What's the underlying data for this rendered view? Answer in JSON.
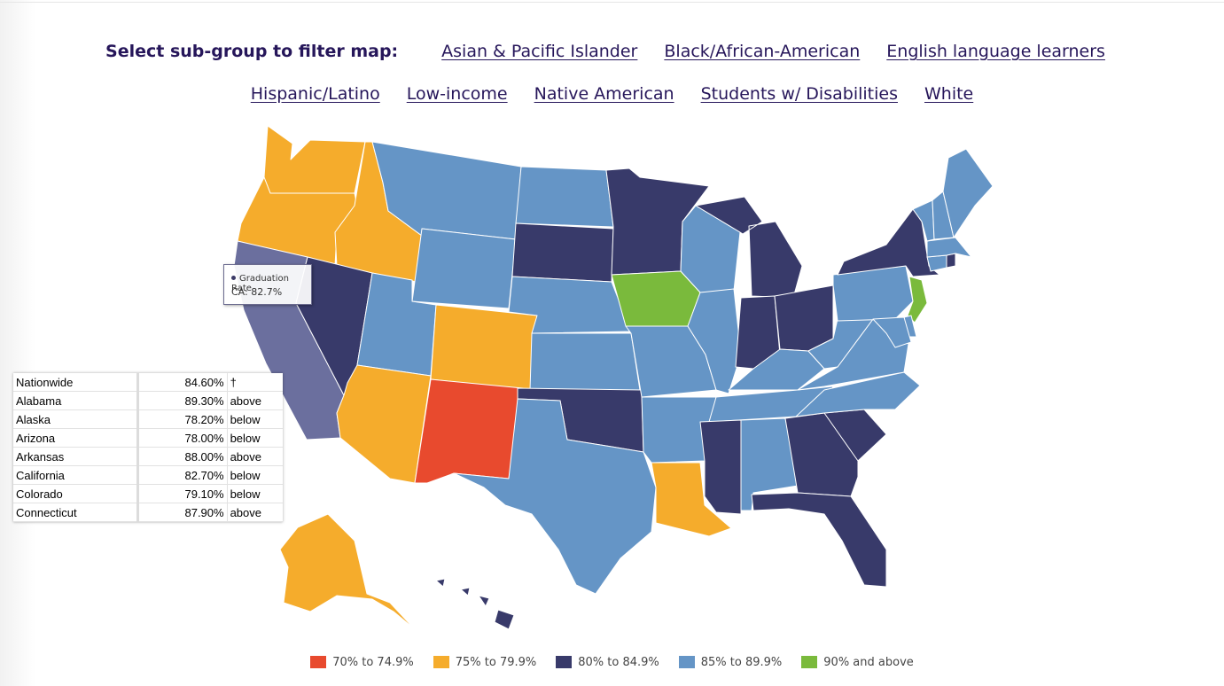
{
  "filter": {
    "label": "Select sub-group to filter map:",
    "links": [
      "Asian & Pacific Islander",
      "Black/African-American",
      "English language learners",
      "Hispanic/Latino",
      "Low-income",
      "Native American",
      "Students w/ Disabilities",
      "White"
    ]
  },
  "tooltip": {
    "series": "Graduation Rate",
    "value": "CA: 82.7%"
  },
  "table": [
    {
      "name": "Nationwide",
      "value": "84.60%",
      "compare": "†"
    },
    {
      "name": "Alabama",
      "value": "89.30%",
      "compare": "above"
    },
    {
      "name": "Alaska",
      "value": "78.20%",
      "compare": "below"
    },
    {
      "name": "Arizona",
      "value": "78.00%",
      "compare": "below"
    },
    {
      "name": "Arkansas",
      "value": "88.00%",
      "compare": "above"
    },
    {
      "name": "California",
      "value": "82.70%",
      "compare": "below"
    },
    {
      "name": "Colorado",
      "value": "79.10%",
      "compare": "below"
    },
    {
      "name": "Connecticut",
      "value": "87.90%",
      "compare": "above"
    }
  ],
  "legend": [
    {
      "label": "70% to 74.9%",
      "color": "#e84a2e"
    },
    {
      "label": "75% to 79.9%",
      "color": "#f5ac2c"
    },
    {
      "label": "80% to 84.9%",
      "color": "#383a6a"
    },
    {
      "label": "85% to 89.9%",
      "color": "#6595c6"
    },
    {
      "label": "90% and above",
      "color": "#7aba3c"
    }
  ],
  "highlight_color": "#6b6f9e",
  "state_colors": {
    "WA": "#f5ac2c",
    "OR": "#f5ac2c",
    "ID": "#f5ac2c",
    "CA": "#6b6f9e",
    "NV": "#383a6a",
    "AZ": "#f5ac2c",
    "UT": "#6595c6",
    "MT": "#6595c6",
    "WY": "#6595c6",
    "CO": "#f5ac2c",
    "NM": "#e84a2e",
    "ND": "#6595c6",
    "SD": "#383a6a",
    "NE": "#6595c6",
    "KS": "#6595c6",
    "OK": "#383a6a",
    "TX": "#6595c6",
    "MN": "#383a6a",
    "IA": "#7aba3c",
    "MO": "#6595c6",
    "AR": "#6595c6",
    "LA": "#f5ac2c",
    "WI": "#6595c6",
    "IL": "#6595c6",
    "MI": "#383a6a",
    "IN": "#383a6a",
    "OH": "#383a6a",
    "KY": "#6595c6",
    "TN": "#6595c6",
    "MS": "#383a6a",
    "AL": "#6595c6",
    "GA": "#383a6a",
    "FL": "#383a6a",
    "SC": "#383a6a",
    "NC": "#6595c6",
    "VA": "#6595c6",
    "WV": "#6595c6",
    "PA": "#6595c6",
    "NY": "#383a6a",
    "NJ": "#7aba3c",
    "DE": "#6595c6",
    "MD": "#6595c6",
    "CT": "#6595c6",
    "RI": "#383a6a",
    "MA": "#6595c6",
    "VT": "#6595c6",
    "NH": "#6595c6",
    "ME": "#6595c6",
    "AK": "#f5ac2c",
    "HI": "#383a6a"
  }
}
